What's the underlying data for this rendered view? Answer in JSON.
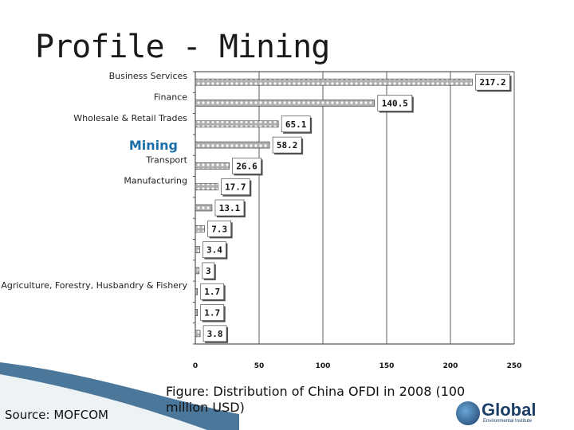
{
  "slide": {
    "title": "Profile - Mining",
    "caption": "Figure: Distribution of China OFDI in 2008 (100 million USD)",
    "source": "Source: MOFCOM",
    "logo_text": "Global",
    "logo_subtext": "Environmental Institute"
  },
  "colors": {
    "bar_fill": "#b0b0b0",
    "bar_pattern": "#ffffff",
    "bar_stroke": "#333333",
    "highlight_label": "#1b6fa8",
    "logo_navy": "#1c3e66",
    "logo_blue": "#3a7bbf"
  },
  "chart_data": {
    "type": "bar",
    "orientation": "horizontal",
    "title": "",
    "xlabel": "",
    "ylabel": "",
    "xlim": [
      0,
      250
    ],
    "xticks": [
      0,
      50,
      100,
      150,
      200,
      250
    ],
    "grid": true,
    "highlight_category": "Mining",
    "categories": [
      "Business Services",
      "Finance",
      "Wholesale & Retail Trades",
      "Mining",
      "Transport",
      "Manufacturing",
      "",
      "",
      "",
      "",
      "Agriculture, Forestry, Husbandry & Fishery",
      "",
      ""
    ],
    "values": [
      217.2,
      140.5,
      65.1,
      58.2,
      26.6,
      17.7,
      13.1,
      7.3,
      3.4,
      3,
      1.7,
      1.7,
      3.8
    ],
    "value_labels": [
      "217.2",
      "140.5",
      "65.1",
      "58.2",
      "26.6",
      "17.7",
      "13.1",
      "7.3",
      "3.4",
      "3",
      "1.7",
      "1.7",
      "3.8"
    ]
  }
}
